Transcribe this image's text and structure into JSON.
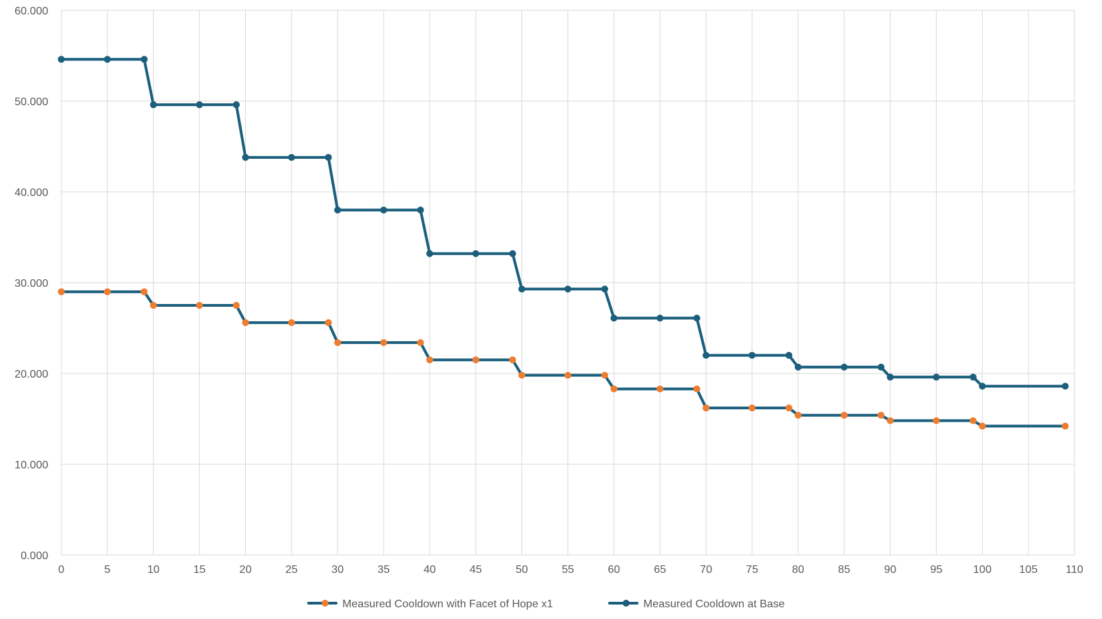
{
  "chart_data": {
    "type": "line",
    "title": "",
    "xlabel": "",
    "ylabel": "",
    "xlim": [
      0,
      110
    ],
    "ylim": [
      0,
      60
    ],
    "grid": true,
    "legend_position": "bottom",
    "x_ticks": [
      "0",
      "5",
      "10",
      "15",
      "20",
      "25",
      "30",
      "35",
      "40",
      "45",
      "50",
      "55",
      "60",
      "65",
      "70",
      "75",
      "80",
      "85",
      "90",
      "95",
      "100",
      "105",
      "110"
    ],
    "y_ticks": [
      "0.000",
      "10.000",
      "20.000",
      "30.000",
      "40.000",
      "50.000",
      "60.000"
    ],
    "x": [
      0,
      5,
      9,
      10,
      15,
      19,
      20,
      25,
      29,
      30,
      35,
      39,
      40,
      45,
      49,
      50,
      55,
      59,
      60,
      65,
      69,
      70,
      75,
      79,
      80,
      85,
      89,
      90,
      95,
      99,
      100,
      109
    ],
    "series": [
      {
        "name": "Measured Cooldown with Facet of Hope x1",
        "color": "#ed7d31",
        "line_color": "#1c5f7d",
        "values": [
          29.0,
          29.0,
          29.0,
          27.5,
          27.5,
          27.5,
          25.6,
          25.6,
          25.6,
          23.4,
          23.4,
          23.4,
          21.5,
          21.5,
          21.5,
          19.8,
          19.8,
          19.8,
          18.3,
          18.3,
          18.3,
          16.2,
          16.2,
          16.2,
          15.4,
          15.4,
          15.4,
          14.8,
          14.8,
          14.8,
          14.2,
          14.2
        ]
      },
      {
        "name": "Measured Cooldown at Base",
        "color": "#1c5f7d",
        "line_color": "#1c5f7d",
        "values": [
          54.6,
          54.6,
          54.6,
          49.6,
          49.6,
          49.6,
          43.8,
          43.8,
          43.8,
          38.0,
          38.0,
          38.0,
          33.2,
          33.2,
          33.2,
          29.3,
          29.3,
          29.3,
          26.1,
          26.1,
          26.1,
          22.0,
          22.0,
          22.0,
          20.7,
          20.7,
          20.7,
          19.6,
          19.6,
          19.6,
          18.6,
          18.6
        ]
      }
    ]
  }
}
